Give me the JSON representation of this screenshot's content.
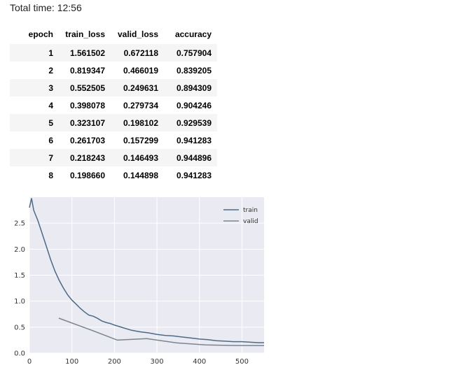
{
  "header": {
    "total_time": "Total time: 12:56"
  },
  "table": {
    "columns": [
      "epoch",
      "train_loss",
      "valid_loss",
      "accuracy"
    ],
    "rows": [
      [
        "1",
        "1.561502",
        "0.672118",
        "0.757904"
      ],
      [
        "2",
        "0.819347",
        "0.466019",
        "0.839205"
      ],
      [
        "3",
        "0.552505",
        "0.249631",
        "0.894309"
      ],
      [
        "4",
        "0.398078",
        "0.279734",
        "0.904246"
      ],
      [
        "5",
        "0.323107",
        "0.198102",
        "0.929539"
      ],
      [
        "6",
        "0.261703",
        "0.157299",
        "0.941283"
      ],
      [
        "7",
        "0.218243",
        "0.146493",
        "0.944896"
      ],
      [
        "8",
        "0.198660",
        "0.144898",
        "0.941283"
      ]
    ]
  },
  "chart_data": {
    "type": "line",
    "xlim": [
      0,
      552
    ],
    "ylim": [
      0,
      3.0
    ],
    "xticks": [
      0,
      100,
      200,
      300,
      400,
      500
    ],
    "xtick_labels": [
      "0",
      "100",
      "200",
      "300",
      "400",
      "500"
    ],
    "yticks": [
      0.0,
      0.5,
      1.0,
      1.5,
      2.0,
      2.5
    ],
    "ytick_labels": [
      "0.0",
      "0.5",
      "1.0",
      "1.5",
      "2.0",
      "2.5"
    ],
    "grid": true,
    "legend": "top-right",
    "background": "#eaeaf2",
    "series": [
      {
        "name": "train",
        "color": "#4c6a84",
        "x": [
          0,
          5,
          10,
          20,
          30,
          40,
          50,
          60,
          70,
          80,
          90,
          100,
          110,
          120,
          130,
          140,
          150,
          160,
          170,
          180,
          190,
          200,
          220,
          240,
          260,
          280,
          300,
          320,
          340,
          360,
          380,
          400,
          420,
          440,
          460,
          480,
          500,
          520,
          540,
          552
        ],
        "y": [
          2.8,
          2.98,
          2.75,
          2.55,
          2.3,
          2.05,
          1.8,
          1.58,
          1.4,
          1.25,
          1.12,
          1.02,
          0.94,
          0.86,
          0.79,
          0.73,
          0.71,
          0.67,
          0.62,
          0.59,
          0.57,
          0.54,
          0.49,
          0.44,
          0.41,
          0.39,
          0.36,
          0.34,
          0.33,
          0.31,
          0.29,
          0.27,
          0.26,
          0.24,
          0.23,
          0.22,
          0.22,
          0.21,
          0.2,
          0.2
        ]
      },
      {
        "name": "valid",
        "color": "#7a8590",
        "x": [
          69,
          138,
          207,
          276,
          345,
          414,
          483,
          552
        ],
        "y": [
          0.672118,
          0.466019,
          0.249631,
          0.279734,
          0.198102,
          0.157299,
          0.146493,
          0.144898
        ]
      }
    ]
  }
}
